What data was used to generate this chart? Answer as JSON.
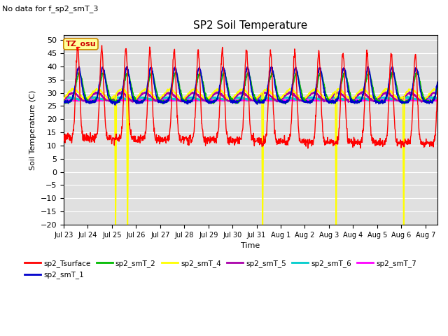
{
  "title": "SP2 Soil Temperature",
  "subtitle": "No data for f_sp2_smT_3",
  "ylabel": "Soil Temperature (C)",
  "xlabel": "Time",
  "tz_label": "TZ_osu",
  "ylim": [
    -20,
    52
  ],
  "yticks": [
    -20,
    -15,
    -10,
    -5,
    0,
    5,
    10,
    15,
    20,
    25,
    30,
    35,
    40,
    45,
    50
  ],
  "bg_color": "#e0e0e0",
  "series_colors": {
    "sp2_Tsurface": "#ff0000",
    "sp2_smT_1": "#0000cc",
    "sp2_smT_2": "#00bb00",
    "sp2_smT_4": "#ffff00",
    "sp2_smT_5": "#aa00aa",
    "sp2_smT_6": "#00cccc",
    "sp2_smT_7": "#ff00ff"
  }
}
